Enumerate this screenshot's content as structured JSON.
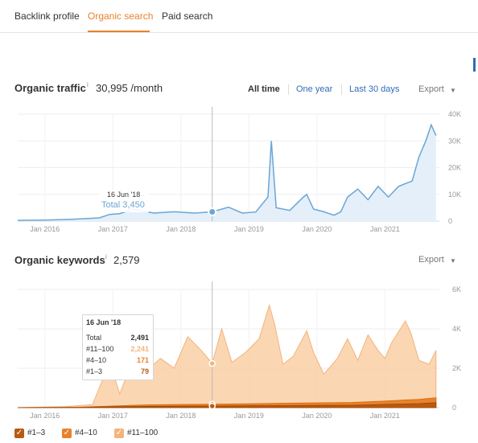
{
  "tabs": [
    {
      "label": "Backlink profile",
      "active": false
    },
    {
      "label": "Organic search",
      "active": true
    },
    {
      "label": "Paid search",
      "active": false
    }
  ],
  "colors": {
    "accent": "#e8822c",
    "link": "#2f6db5",
    "traffic_line": "#6aa6d6",
    "traffic_fill": "#e4eff9",
    "kw_11_100": "#f9c89a",
    "kw_4_10": "#e8822c",
    "kw_1_3": "#b85b12"
  },
  "traffic": {
    "title": "Organic traffic",
    "info": "i",
    "value": "30,995 /month",
    "ranges": [
      "All time",
      "One year",
      "Last 30 days"
    ],
    "active_range": "All time",
    "export_label": "Export",
    "tooltip": {
      "date": "16 Jun '18",
      "total_label": "Total 3,450"
    }
  },
  "keywords": {
    "title": "Organic keywords",
    "info": "i",
    "value": "2,579",
    "export_label": "Export",
    "tooltip": {
      "date": "16 Jun '18",
      "rows": [
        {
          "label": "Total",
          "value": "2,491"
        },
        {
          "label": "#11–100",
          "value": "2,241"
        },
        {
          "label": "#4–10",
          "value": "171"
        },
        {
          "label": "#1–3",
          "value": "79"
        }
      ]
    },
    "legend": [
      "#1–3",
      "#4–10",
      "#11–100"
    ]
  },
  "chart_data": [
    {
      "type": "area",
      "title": "Organic traffic",
      "x_ticks": [
        "Jan 2016",
        "Jan 2017",
        "Jan 2018",
        "Jan 2019",
        "Jan 2020",
        "Jan 2021"
      ],
      "y_ticks": [
        "40K",
        "30K",
        "20K",
        "10K",
        "0"
      ],
      "ylim": [
        0,
        40000
      ],
      "xlim": [
        2015.6,
        2021.8
      ],
      "grid": true,
      "series": [
        {
          "x": [
            2015.6,
            2016.0,
            2016.4,
            2016.8,
            2016.95,
            2017.1,
            2017.3,
            2017.6,
            2017.9,
            2018.2,
            2018.46,
            2018.7,
            2018.9,
            2019.1,
            2019.28,
            2019.33,
            2019.4,
            2019.6,
            2019.8,
            2019.85,
            2019.95,
            2020.1,
            2020.25,
            2020.35,
            2020.45,
            2020.6,
            2020.75,
            2020.9,
            2021.05,
            2021.2,
            2021.4,
            2021.5,
            2021.6,
            2021.68,
            2021.75
          ],
          "values": [
            300,
            400,
            700,
            1200,
            2500,
            2800,
            4500,
            3000,
            3500,
            3000,
            3450,
            5200,
            3000,
            3400,
            9000,
            30000,
            5000,
            4000,
            9000,
            10000,
            4500,
            3500,
            2200,
            3500,
            9000,
            12000,
            8000,
            13000,
            9000,
            13000,
            15000,
            24000,
            30000,
            36000,
            32000
          ]
        }
      ]
    },
    {
      "type": "area",
      "title": "Organic keywords",
      "x_ticks": [
        "Jan 2016",
        "Jan 2017",
        "Jan 2018",
        "Jan 2019",
        "Jan 2020",
        "Jan 2021"
      ],
      "y_ticks": [
        "6K",
        "4K",
        "2K",
        "0"
      ],
      "ylim": [
        0,
        6000
      ],
      "xlim": [
        2015.6,
        2021.8
      ],
      "grid": true,
      "series": [
        {
          "name": "#11–100",
          "x": [
            2015.6,
            2016.3,
            2016.7,
            2016.95,
            2017.1,
            2017.3,
            2017.5,
            2017.7,
            2017.9,
            2018.1,
            2018.3,
            2018.46,
            2018.6,
            2018.75,
            2018.95,
            2019.15,
            2019.3,
            2019.38,
            2019.5,
            2019.65,
            2019.85,
            2019.95,
            2020.1,
            2020.3,
            2020.45,
            2020.6,
            2020.75,
            2020.9,
            2021.0,
            2021.1,
            2021.3,
            2021.38,
            2021.5,
            2021.65,
            2021.75
          ],
          "values": [
            0,
            50,
            150,
            2300,
            700,
            2500,
            1900,
            2500,
            2000,
            3600,
            2900,
            2241,
            4000,
            2300,
            2800,
            3500,
            5200,
            4200,
            2200,
            2600,
            3900,
            2800,
            1700,
            2500,
            3500,
            2400,
            3700,
            2900,
            2500,
            3300,
            4400,
            3800,
            2400,
            2200,
            2900
          ]
        },
        {
          "name": "#4–10",
          "x": [
            2015.6,
            2016.5,
            2017.0,
            2017.5,
            2018.0,
            2018.46,
            2019.0,
            2019.5,
            2020.0,
            2020.5,
            2021.0,
            2021.5,
            2021.75
          ],
          "values": [
            0,
            20,
            80,
            140,
            160,
            171,
            190,
            220,
            240,
            260,
            330,
            420,
            500
          ]
        },
        {
          "name": "#1–3",
          "x": [
            2015.6,
            2016.5,
            2017.0,
            2017.5,
            2018.0,
            2018.46,
            2019.0,
            2019.5,
            2020.0,
            2020.5,
            2021.0,
            2021.5,
            2021.75
          ],
          "values": [
            0,
            10,
            40,
            60,
            70,
            79,
            90,
            100,
            110,
            120,
            160,
            200,
            250
          ]
        }
      ]
    }
  ]
}
